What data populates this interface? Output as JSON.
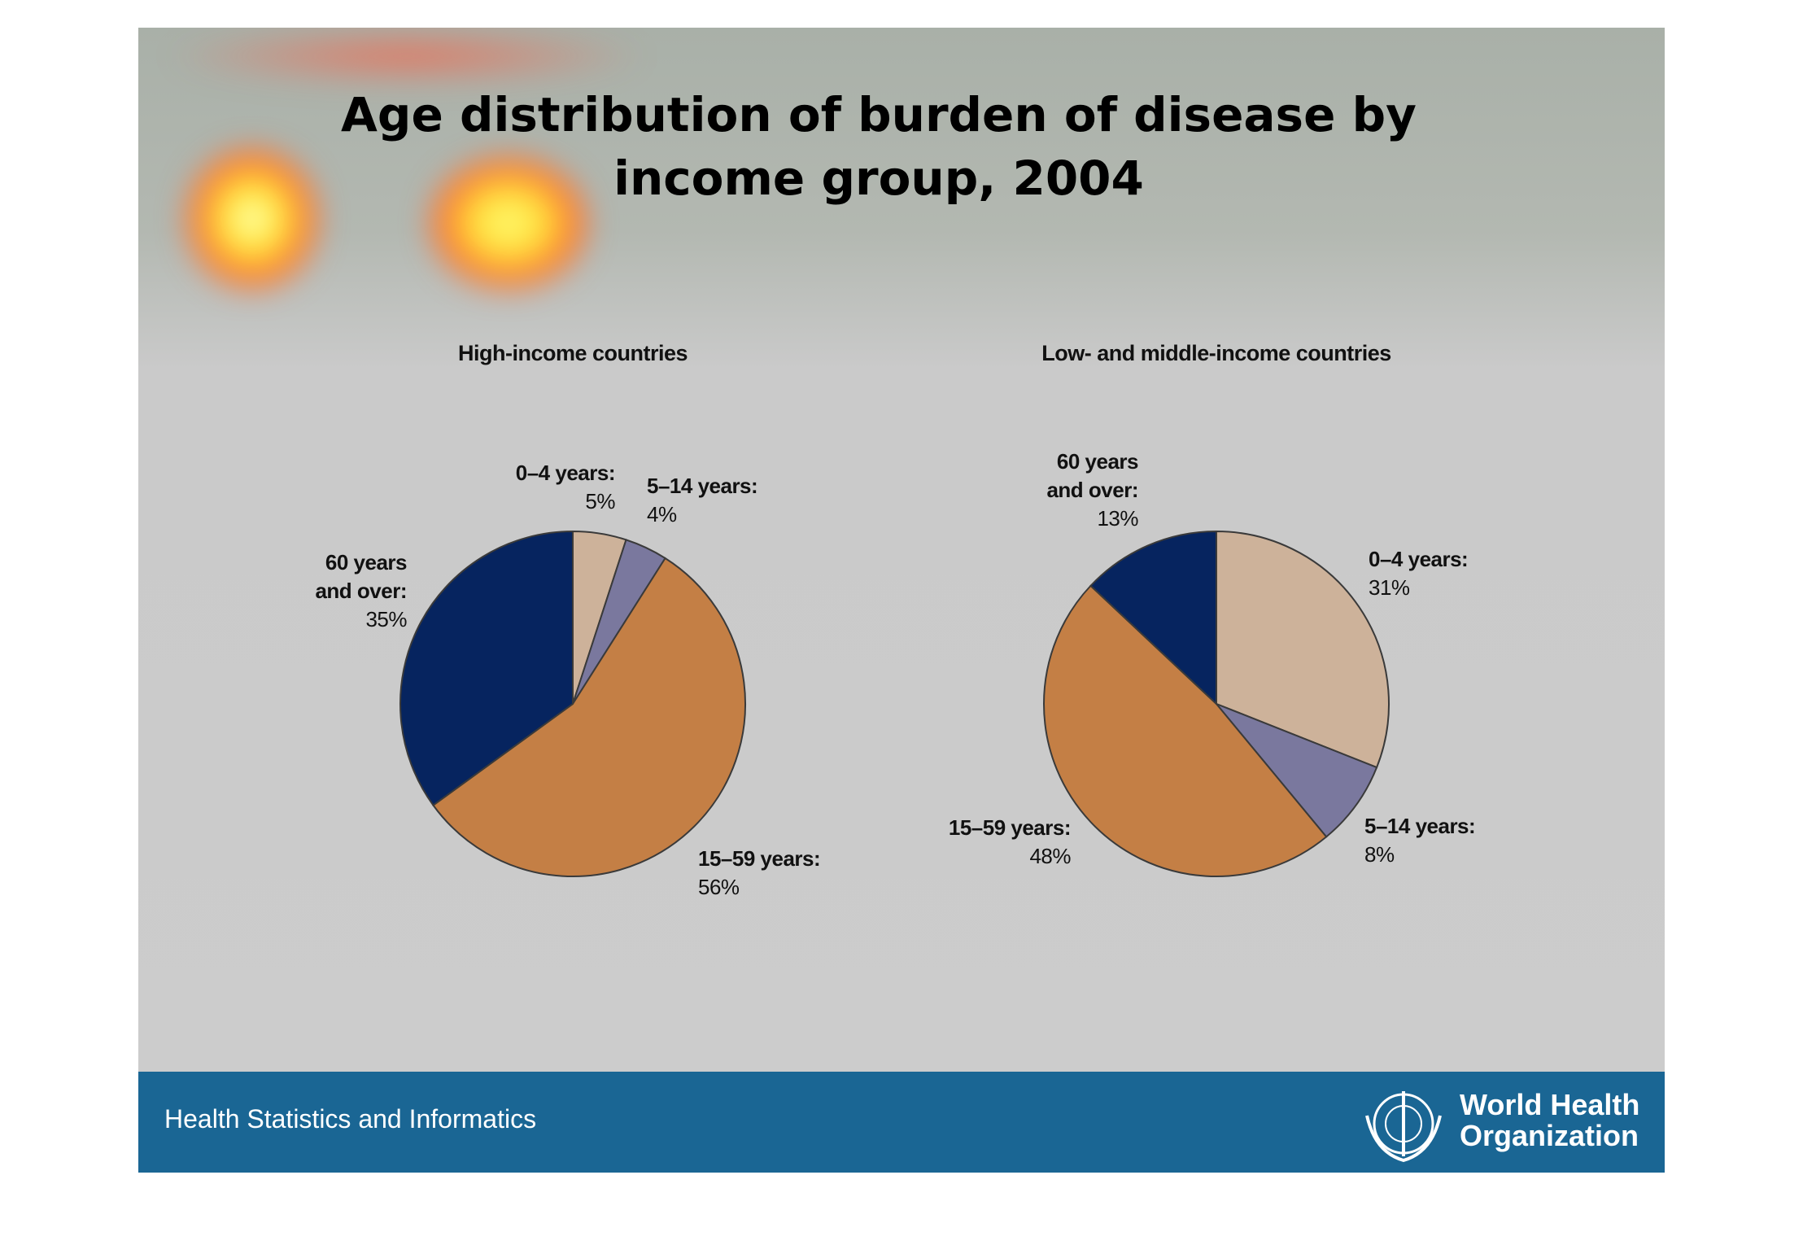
{
  "title": "Age distribution of burden of disease by income group, 2004",
  "footer": {
    "text": "Health Statistics and Informatics",
    "logo_text": "World Health Organization"
  },
  "chart_data": [
    {
      "type": "pie",
      "title": "High-income countries",
      "categories": [
        "0–4 years:",
        "5–14 years:",
        "15–59 years:",
        "60 years and over:"
      ],
      "values": [
        5,
        4,
        56,
        35
      ],
      "value_labels": [
        "5%",
        "4%",
        "56%",
        "35%"
      ],
      "colors": [
        "#cdb29a",
        "#7a789e",
        "#c47f45",
        "#06245f"
      ]
    },
    {
      "type": "pie",
      "title": "Low- and middle-income countries",
      "categories": [
        "0–4 years:",
        "5–14 years:",
        "15–59 years:",
        "60 years and over:"
      ],
      "values": [
        31,
        8,
        48,
        13
      ],
      "value_labels": [
        "31%",
        "8%",
        "48%",
        "13%"
      ],
      "colors": [
        "#cdb29a",
        "#7a789e",
        "#c47f45",
        "#06245f"
      ]
    }
  ]
}
